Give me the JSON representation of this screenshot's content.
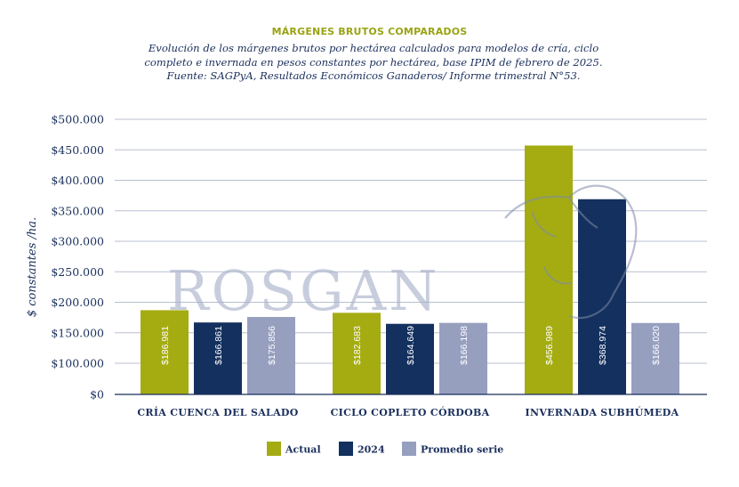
{
  "header": {
    "title": "MÁRGENES BRUTOS COMPARADOS",
    "subtitle_lines": [
      "Evolución de los márgenes brutos por hectárea calculados para modelos de cría, ciclo",
      "completo e invernada en pesos constantes por hectárea, base IPIM de febrero de 2025.",
      "Fuente: SAGPyA, Resultados Económicos Ganaderos/ Informe trimestral N°53."
    ]
  },
  "watermark": "ROSGAN",
  "chart_data": {
    "type": "bar",
    "ylabel": "$ constantes /ha.",
    "ylim": [
      0,
      500000
    ],
    "yticks": [
      "$0",
      "$100.000",
      "$150.000",
      "$200.000",
      "$250.000",
      "$300.000",
      "$350.000",
      "$400.000",
      "$450.000",
      "$500.000"
    ],
    "ytick_values": [
      0,
      100000,
      150000,
      200000,
      250000,
      300000,
      350000,
      400000,
      450000,
      500000
    ],
    "grid": true,
    "legend_position": "bottom",
    "categories": [
      "CRÍA CUENCA DEL SALADO",
      "CICLO COPLETO CÓRDOBA",
      "INVERNADA SUBHÚMEDA"
    ],
    "series": [
      {
        "name": "Actual",
        "color": "#a5ac12",
        "values": [
          186981,
          182683,
          456989
        ],
        "labels": [
          "$186.981",
          "$182.683",
          "$456.989"
        ]
      },
      {
        "name": "2024",
        "color": "#13305e",
        "values": [
          166861,
          164649,
          368974
        ],
        "labels": [
          "$166.861",
          "$164.649",
          "$368.974"
        ]
      },
      {
        "name": "Promedio serie",
        "color": "#979fbf",
        "values": [
          175856,
          166198,
          166020
        ],
        "labels": [
          "$175.856",
          "$166.198",
          "$166.020"
        ]
      }
    ]
  }
}
